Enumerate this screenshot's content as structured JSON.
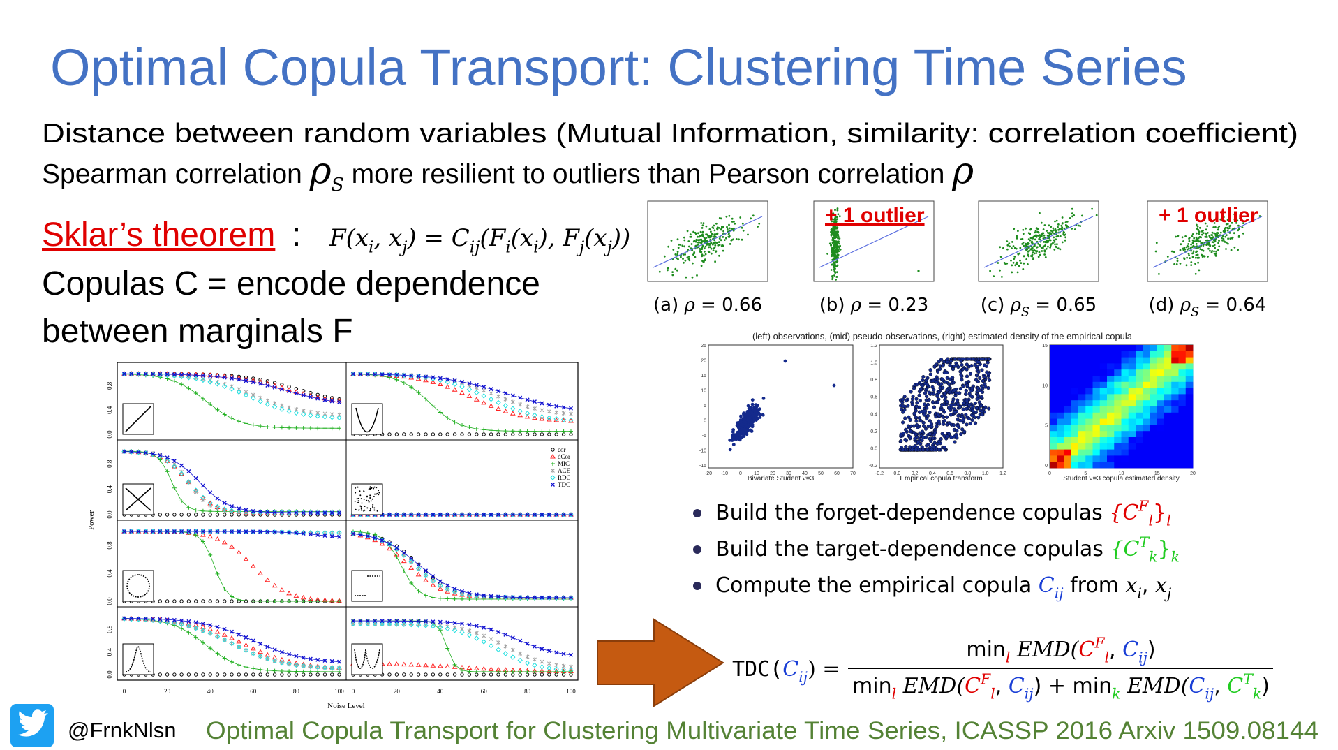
{
  "title": "Optimal Copula Transport: Clustering Time Series",
  "intro": {
    "line1": "Distance between random variables (Mutual Information, similarity: correlation coefficient)",
    "line2": [
      {
        "text": "Spearman correlation "
      },
      {
        "text": "ρ",
        "style": "i big"
      },
      {
        "text": "S",
        "style": "i sub"
      },
      {
        "text": " more resilient to outliers than Pearson correlation  "
      },
      {
        "text": "ρ",
        "style": "i big"
      }
    ]
  },
  "sklar": {
    "label": "Sklar’s theorem",
    "colon": ":",
    "formula": [
      {
        "text": "F(x",
        "style": "i"
      },
      {
        "text": "i",
        "style": "i sub"
      },
      {
        "text": ", x",
        "style": "i"
      },
      {
        "text": "j",
        "style": "i sub"
      },
      {
        "text": ") = C",
        "style": "i"
      },
      {
        "text": "ij",
        "style": "i sub"
      },
      {
        "text": "(F",
        "style": "i"
      },
      {
        "text": "i",
        "style": "i sub"
      },
      {
        "text": "(x",
        "style": "i"
      },
      {
        "text": "i",
        "style": "i sub"
      },
      {
        "text": "), F",
        "style": "i"
      },
      {
        "text": "j",
        "style": "i sub"
      },
      {
        "text": "(x",
        "style": "i"
      },
      {
        "text": "j",
        "style": "i sub"
      },
      {
        "text": "))",
        "style": "i"
      }
    ]
  },
  "copulas": [
    "Copulas C = encode dependence",
    "between marginals F"
  ],
  "scatter_panels": [
    {
      "caption": [
        {
          "text": "(a) "
        },
        {
          "text": "ρ",
          "style": "i"
        },
        {
          "text": " = 0.66"
        }
      ]
    },
    {
      "caption": [
        {
          "text": "(b) "
        },
        {
          "text": "ρ",
          "style": "i"
        },
        {
          "text": " = 0.23"
        }
      ],
      "annotation": "+ 1 outlier"
    },
    {
      "caption": [
        {
          "text": "(c) "
        },
        {
          "text": "ρ",
          "style": "i"
        },
        {
          "text": "S",
          "style": "i sub"
        },
        {
          "text": " = 0.65"
        }
      ]
    },
    {
      "caption": [
        {
          "text": "(d) "
        },
        {
          "text": "ρ",
          "style": "i"
        },
        {
          "text": "S",
          "style": "i sub"
        },
        {
          "text": " = 0.64"
        }
      ],
      "annotation": "+ 1 outlier"
    }
  ],
  "density": {
    "title": "(left) observations, (mid) pseudo-observations, (right) estimated density of the empirical copula",
    "panels": [
      {
        "caption": "Bivariate Student ν=3",
        "xticks": [
          "-20",
          "-10",
          "0",
          "10",
          "20",
          "30",
          "40",
          "50",
          "60",
          "70"
        ],
        "yticks": [
          "25",
          "20",
          "15",
          "10",
          "5",
          "0",
          "-5",
          "-10",
          "-15"
        ]
      },
      {
        "caption": "Empirical copula transform",
        "xticks": [
          "-0.2",
          "0.0",
          "0.2",
          "0.4",
          "0.6",
          "0.8",
          "1.0",
          "1.2"
        ],
        "yticks": [
          "1.2",
          "1.0",
          "0.8",
          "0.6",
          "0.4",
          "0.2",
          "0.0",
          "-0.2"
        ]
      },
      {
        "caption": "Student ν=3 copula estimated density",
        "xticks": [
          "0",
          "5",
          "10",
          "15",
          "20"
        ],
        "yticks": [
          "15",
          "10",
          "5",
          "0"
        ]
      }
    ]
  },
  "bullets": [
    [
      {
        "text": "Build the forget-dependence copulas "
      },
      {
        "text": "{C",
        "style": "i",
        "color": "#e00000"
      },
      {
        "text": "F",
        "style": "i sup",
        "color": "#e00000"
      },
      {
        "text": "l",
        "style": "i sub",
        "color": "#e00000"
      },
      {
        "text": "}",
        "color": "#e00000"
      },
      {
        "text": "l",
        "style": "i sub",
        "color": "#e00000"
      }
    ],
    [
      {
        "text": "Build the target-dependence copulas "
      },
      {
        "text": "{C",
        "style": "i",
        "color": "#22cc22"
      },
      {
        "text": "T",
        "style": "i sup",
        "color": "#22cc22"
      },
      {
        "text": "k",
        "style": "i sub",
        "color": "#22cc22"
      },
      {
        "text": "}",
        "color": "#22cc22"
      },
      {
        "text": "k",
        "style": "i sub",
        "color": "#22cc22"
      }
    ],
    [
      {
        "text": "Compute the empirical copula "
      },
      {
        "text": "C",
        "style": "i",
        "color": "#1a3fd6"
      },
      {
        "text": "ij",
        "style": "i sub",
        "color": "#1a3fd6"
      },
      {
        "text": " from "
      },
      {
        "text": "x",
        "style": "i"
      },
      {
        "text": "i",
        "style": "i sub"
      },
      {
        "text": ", "
      },
      {
        "text": "x",
        "style": "i"
      },
      {
        "text": "j",
        "style": "i sub"
      }
    ]
  ],
  "tdc": {
    "lhs": [
      {
        "text": "TDC(",
        "style": "mono"
      },
      {
        "text": "C",
        "style": "i",
        "color": "#1a3fd6"
      },
      {
        "text": "ij",
        "style": "i sub",
        "color": "#1a3fd6"
      },
      {
        "text": ") ="
      }
    ],
    "numerator": [
      {
        "text": "min"
      },
      {
        "text": "l",
        "style": "i sub",
        "color": "#e00000"
      },
      {
        "text": " EMD(",
        "style": "serif"
      },
      {
        "text": "C",
        "style": "i",
        "color": "#e00000"
      },
      {
        "text": "F",
        "style": "i sup",
        "color": "#e00000"
      },
      {
        "text": "l",
        "style": "i sub",
        "color": "#e00000"
      },
      {
        "text": ", "
      },
      {
        "text": "C",
        "style": "i",
        "color": "#1a3fd6"
      },
      {
        "text": "ij",
        "style": "i sub",
        "color": "#1a3fd6"
      },
      {
        "text": ")"
      }
    ],
    "denominator": [
      {
        "text": "min"
      },
      {
        "text": "l",
        "style": "i sub",
        "color": "#e00000"
      },
      {
        "text": " EMD(",
        "style": "serif"
      },
      {
        "text": "C",
        "style": "i",
        "color": "#e00000"
      },
      {
        "text": "F",
        "style": "i sup",
        "color": "#e00000"
      },
      {
        "text": "l",
        "style": "i sub",
        "color": "#e00000"
      },
      {
        "text": ", "
      },
      {
        "text": "C",
        "style": "i",
        "color": "#1a3fd6"
      },
      {
        "text": "ij",
        "style": "i sub",
        "color": "#1a3fd6"
      },
      {
        "text": ") + min"
      },
      {
        "text": "k",
        "style": "i sub",
        "color": "#22cc22"
      },
      {
        "text": " EMD(",
        "style": "serif"
      },
      {
        "text": "C",
        "style": "i",
        "color": "#1a3fd6"
      },
      {
        "text": "ij",
        "style": "i sub",
        "color": "#1a3fd6"
      },
      {
        "text": ", "
      },
      {
        "text": "C",
        "style": "i",
        "color": "#22cc22"
      },
      {
        "text": "T",
        "style": "i sup",
        "color": "#22cc22"
      },
      {
        "text": "k",
        "style": "i sub",
        "color": "#22cc22"
      },
      {
        "text": ")"
      }
    ]
  },
  "power_plot": {
    "ylabel": "Power",
    "xlabel": "Noise Level",
    "yticks": [
      "0.0",
      "0.4",
      "0.8"
    ],
    "xticks": [
      "0",
      "20",
      "40",
      "60",
      "80",
      "100"
    ],
    "legend": [
      {
        "name": "cor",
        "color": "#000000"
      },
      {
        "name": "dCor",
        "color": "#ff2020"
      },
      {
        "name": "MIC",
        "color": "#20b020"
      },
      {
        "name": "ACE",
        "color": "#a0a0a0"
      },
      {
        "name": "RDC",
        "color": "#20e0e0"
      },
      {
        "name": "TDC",
        "color": "#1010d0"
      }
    ]
  },
  "footer": {
    "handle": "@FrnkNlsn",
    "citation": "Optimal Copula Transport for Clustering Multivariate Time Series, ICASSP 2016  Arxiv 1509.08144"
  }
}
